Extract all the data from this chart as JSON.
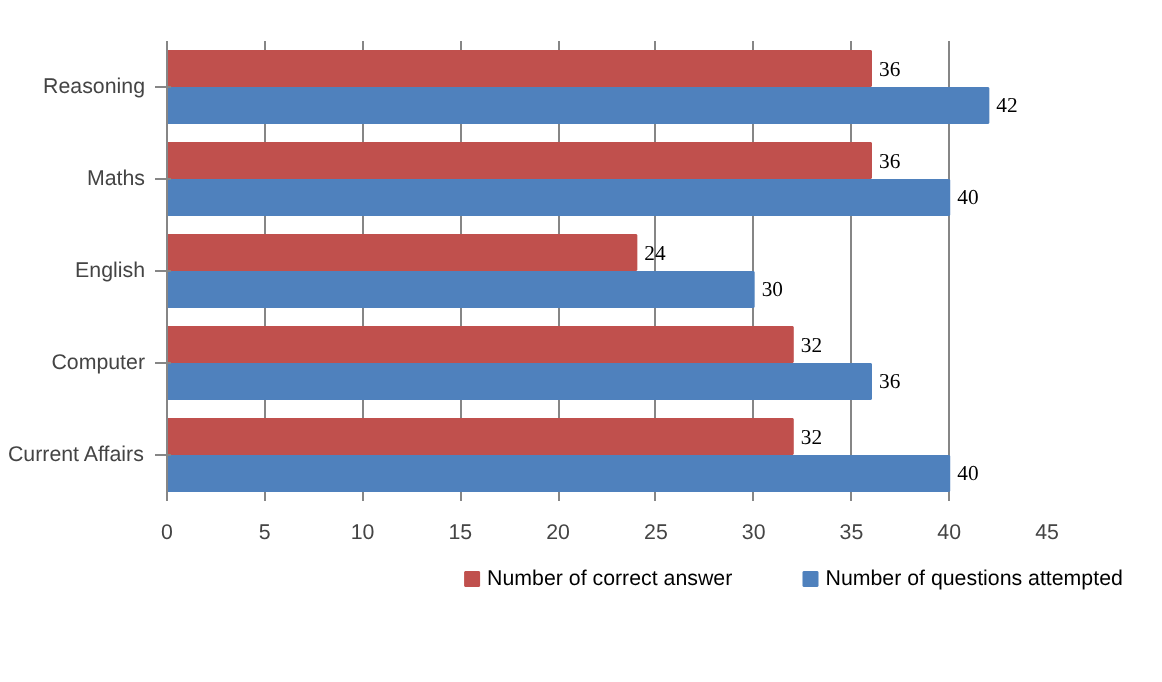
{
  "chart_data": {
    "type": "bar",
    "orientation": "horizontal",
    "categories": [
      "Reasoning",
      "Maths",
      "English",
      "Computer",
      "Current Affairs"
    ],
    "series": [
      {
        "name": "Number of correct answer",
        "color": "#c0504d",
        "values": [
          36,
          36,
          24,
          32,
          32
        ]
      },
      {
        "name": "Number of questions attempted",
        "color": "#4f81bd",
        "values": [
          42,
          40,
          30,
          36,
          40
        ]
      }
    ],
    "xlim": [
      0,
      45
    ],
    "xticks": [
      0,
      5,
      10,
      15,
      20,
      25,
      30,
      35,
      40,
      45
    ],
    "grid": "x",
    "legend": "bottom",
    "data_labels": true
  }
}
